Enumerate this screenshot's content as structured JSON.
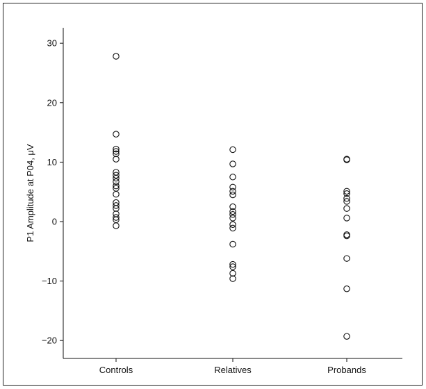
{
  "chart_data": {
    "type": "scatter",
    "title": "",
    "xlabel": "",
    "ylabel": "P1 Amplitude at P04, μV",
    "categories": [
      "Controls",
      "Relatives",
      "Probands"
    ],
    "ylim": [
      -23,
      34
    ],
    "yticks": [
      -20,
      -10,
      0,
      10,
      20,
      30
    ],
    "ytick_labels": [
      "−20",
      "−10",
      "0",
      "10",
      "20",
      "30"
    ],
    "grid": false,
    "legend": "none",
    "marker": "open-circle",
    "series": [
      {
        "category": "Controls",
        "values": [
          27.8,
          14.7,
          12.2,
          11.8,
          11.4,
          10.5,
          8.3,
          7.8,
          7.3,
          6.7,
          6.0,
          5.6,
          4.6,
          3.2,
          2.7,
          2.2,
          1.3,
          0.7,
          0.3,
          -0.7
        ]
      },
      {
        "category": "Relatives",
        "values": [
          12.1,
          9.7,
          7.5,
          5.8,
          5.1,
          4.5,
          2.5,
          1.7,
          1.2,
          0.6,
          -0.5,
          -1.1,
          -3.8,
          -7.2,
          -7.6,
          -8.7,
          -9.6
        ]
      },
      {
        "category": "Probands",
        "values": [
          10.5,
          10.4,
          5.1,
          4.7,
          3.9,
          3.4,
          2.2,
          0.6,
          -2.2,
          -2.4,
          -6.2,
          -11.3,
          -19.3
        ]
      }
    ]
  }
}
